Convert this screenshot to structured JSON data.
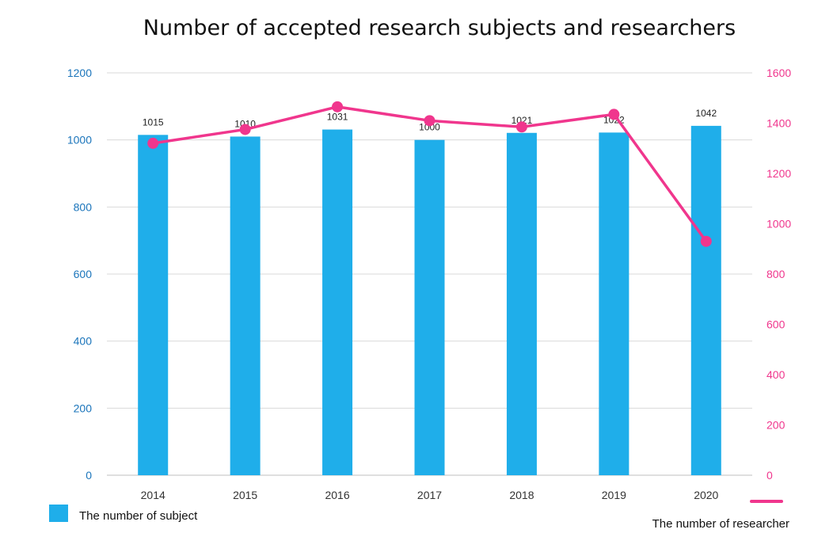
{
  "chart_data": {
    "type": "bar",
    "title": "Number of accepted research subjects and researchers",
    "categories": [
      "2014",
      "2015",
      "2016",
      "2017",
      "2018",
      "2019",
      "2020"
    ],
    "series": [
      {
        "name": "The number of subject",
        "type": "bar",
        "axis": "left",
        "values": [
          1015,
          1010,
          1031,
          1000,
          1021,
          1022,
          1042
        ],
        "color": "#1FAEEA",
        "data_labels": [
          "1015",
          "1010",
          "1031",
          "1000",
          "1021",
          "1022",
          "1042"
        ]
      },
      {
        "name": "The number of researcher",
        "type": "line",
        "axis": "right",
        "values": [
          1320,
          1375,
          1465,
          1410,
          1385,
          1435,
          930
        ],
        "color": "#F0368D"
      }
    ],
    "y_left": {
      "lim": [
        0,
        1200
      ],
      "ticks": [
        "0",
        "200",
        "400",
        "600",
        "800",
        "1000",
        "1200"
      ],
      "tick_values": [
        0,
        200,
        400,
        600,
        800,
        1000,
        1200
      ],
      "color": "#1B75BB"
    },
    "y_right": {
      "lim": [
        0,
        1600
      ],
      "ticks": [
        "0",
        "200",
        "400",
        "600",
        "800",
        "1000",
        "1200",
        "1400",
        "1600"
      ],
      "tick_values": [
        0,
        200,
        400,
        600,
        800,
        1000,
        1200,
        1400,
        1600
      ],
      "color": "#F0368D"
    },
    "grid": true,
    "legend_placement": "bottom"
  }
}
